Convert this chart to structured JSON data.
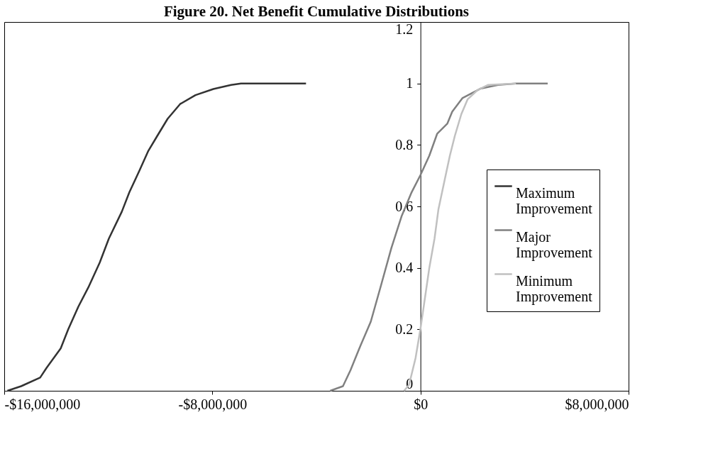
{
  "chart_data": {
    "type": "line",
    "title": "Figure 20.  Net Benefit Cumulative Distributions",
    "xlim": [
      -16000000,
      8000000
    ],
    "xticks": [
      {
        "value": -16000000,
        "label": "-$16,000,000"
      },
      {
        "value": -8000000,
        "label": "-$8,000,000"
      },
      {
        "value": 0,
        "label": "$0"
      },
      {
        "value": 8000000,
        "label": "$8,000,000"
      }
    ],
    "ylim": [
      0,
      1.2
    ],
    "yticks": [
      0,
      0.2,
      0.4,
      0.6,
      0.8,
      1,
      1.2
    ],
    "grid": false,
    "legend": "right",
    "marker": "none",
    "line_style": "solid",
    "series": [
      {
        "name": "Maximum Improvement",
        "color": "#333333",
        "x": [
          -15880000,
          -15350000,
          -14620000,
          -14370000,
          -13830000,
          -13540000,
          -13150000,
          -12770000,
          -12330000,
          -11980000,
          -11480000,
          -11190000,
          -10800000,
          -10460000,
          -10120000,
          -9720000,
          -9240000,
          -8650000,
          -7960000,
          -7280000,
          -6900000,
          -4400000
        ],
        "values": [
          0,
          0.015,
          0.043,
          0.075,
          0.138,
          0.2,
          0.274,
          0.336,
          0.417,
          0.495,
          0.583,
          0.646,
          0.717,
          0.781,
          0.829,
          0.885,
          0.933,
          0.962,
          0.982,
          0.995,
          1,
          1
        ]
      },
      {
        "name": "Major Improvement",
        "color": "#808080",
        "x": [
          -3470000,
          -2980000,
          -2690000,
          -2350000,
          -1910000,
          -1510000,
          -1120000,
          -730000,
          -340000,
          0,
          340000,
          640000,
          1030000,
          1220000,
          1610000,
          2300000,
          2980000,
          3670000,
          4890000
        ],
        "values": [
          0,
          0.015,
          0.067,
          0.138,
          0.225,
          0.345,
          0.464,
          0.567,
          0.646,
          0.702,
          0.765,
          0.836,
          0.869,
          0.908,
          0.952,
          0.983,
          0.995,
          1,
          1
        ]
      },
      {
        "name": "Minimum Improvement",
        "color": "#c0c0c0",
        "x": [
          -630000,
          -440000,
          -190000,
          0,
          150000,
          340000,
          540000,
          690000,
          930000,
          1130000,
          1320000,
          1570000,
          1810000,
          2200000,
          2590000,
          3670000
        ],
        "values": [
          0,
          0.019,
          0.106,
          0.202,
          0.289,
          0.4,
          0.495,
          0.59,
          0.686,
          0.765,
          0.829,
          0.9,
          0.948,
          0.979,
          0.995,
          1
        ]
      }
    ]
  }
}
